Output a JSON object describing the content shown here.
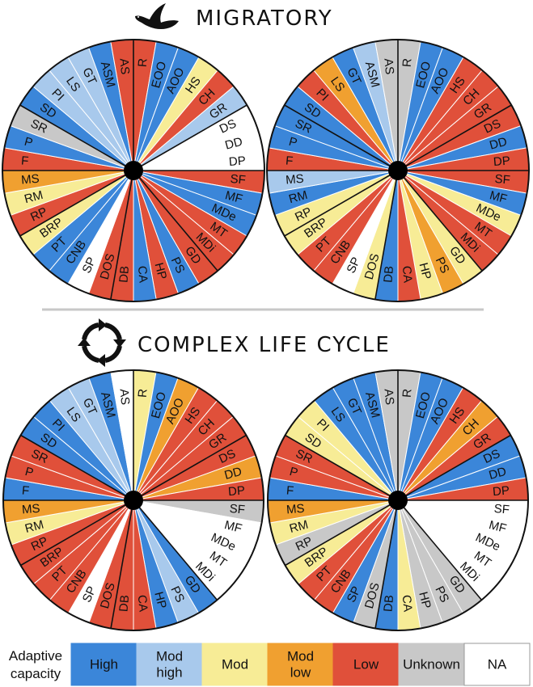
{
  "sections": [
    {
      "title": "MIGRATORY",
      "icon": "bird-icon"
    },
    {
      "title": "COMPLEX LIFE CYCLE",
      "icon": "cycle-arrows-icon"
    }
  ],
  "segments": [
    "R",
    "EOO",
    "AOO",
    "HS",
    "CH",
    "GR",
    "DS",
    "DD",
    "DP",
    "SF",
    "MF",
    "MDe",
    "MT",
    "MDi",
    "GD",
    "PS",
    "HP",
    "CA",
    "DB",
    "DOS",
    "SP",
    "CNB",
    "PT",
    "BRP",
    "RP",
    "RM",
    "MS",
    "F",
    "P",
    "SR",
    "SD",
    "PI",
    "LS",
    "GT",
    "ASM",
    "AS"
  ],
  "colors": {
    "High": "#3b86d9",
    "Mod high": "#a8c9ec",
    "Mod": "#f7ec96",
    "Mod low": "#f0a030",
    "Low": "#e0503a",
    "Unknown": "#c8c8c8",
    "NA": "#ffffff"
  },
  "wheels": [
    {
      "name": "migratory-left",
      "section": 0,
      "values": [
        "Low",
        "High",
        "High",
        "Mod",
        "Low",
        "Mod high",
        "NA",
        "NA",
        "NA",
        "Low",
        "High",
        "High",
        "Low",
        "Low",
        "Low",
        "High",
        "Low",
        "High",
        "Low",
        "Low",
        "NA",
        "High",
        "High",
        "Mod",
        "Low",
        "Mod",
        "Mod low",
        "Low",
        "High",
        "Unknown",
        "High",
        "Mod high",
        "Mod high",
        "Mod high",
        "High",
        "Low"
      ]
    },
    {
      "name": "migratory-right",
      "section": 0,
      "values": [
        "Unknown",
        "High",
        "High",
        "Low",
        "Low",
        "Low",
        "Low",
        "High",
        "Low",
        "Low",
        "High",
        "Mod",
        "Low",
        "Low",
        "Mod",
        "Mod low",
        "Mod",
        "Low",
        "High",
        "Mod",
        "NA",
        "Low",
        "Low",
        "Mod",
        "Mod",
        "High",
        "Mod high",
        "Low",
        "High",
        "High",
        "High",
        "Low",
        "Mod low",
        "High",
        "Mod high",
        "Unknown"
      ]
    },
    {
      "name": "life-cycle-left",
      "section": 1,
      "values": [
        "Mod",
        "High",
        "Mod low",
        "Low",
        "Low",
        "Low",
        "Low",
        "Mod low",
        "Low",
        "Unknown",
        "NA",
        "NA",
        "NA",
        "NA",
        "High",
        "Mod high",
        "High",
        "Low",
        "Low",
        "Low",
        "NA",
        "Low",
        "Low",
        "Low",
        "Low",
        "Mod",
        "Mod low",
        "High",
        "Low",
        "Low",
        "High",
        "High",
        "Mod high",
        "Mod high",
        "High",
        "NA"
      ]
    },
    {
      "name": "life-cycle-right",
      "section": 1,
      "values": [
        "Unknown",
        "High",
        "High",
        "Low",
        "Mod low",
        "Low",
        "High",
        "High",
        "Low",
        "NA",
        "NA",
        "NA",
        "NA",
        "NA",
        "Unknown",
        "Unknown",
        "Unknown",
        "Mod",
        "High",
        "Unknown",
        "High",
        "Low",
        "Low",
        "Mod",
        "Unknown",
        "Mod",
        "Mod low",
        "High",
        "Low",
        "Low",
        "Mod",
        "Mod",
        "High",
        "High",
        "High",
        "Unknown"
      ]
    }
  ],
  "legend": {
    "title_lines": [
      "Adaptive",
      "capacity"
    ],
    "items": [
      {
        "key": "High",
        "label_lines": [
          "High"
        ]
      },
      {
        "key": "Mod high",
        "label_lines": [
          "Mod",
          "high"
        ]
      },
      {
        "key": "Mod",
        "label_lines": [
          "Mod"
        ]
      },
      {
        "key": "Mod low",
        "label_lines": [
          "Mod",
          "low"
        ]
      },
      {
        "key": "Low",
        "label_lines": [
          "Low"
        ]
      },
      {
        "key": "Unknown",
        "label_lines": [
          "Unknown"
        ]
      },
      {
        "key": "NA",
        "label_lines": [
          "NA"
        ]
      }
    ]
  }
}
